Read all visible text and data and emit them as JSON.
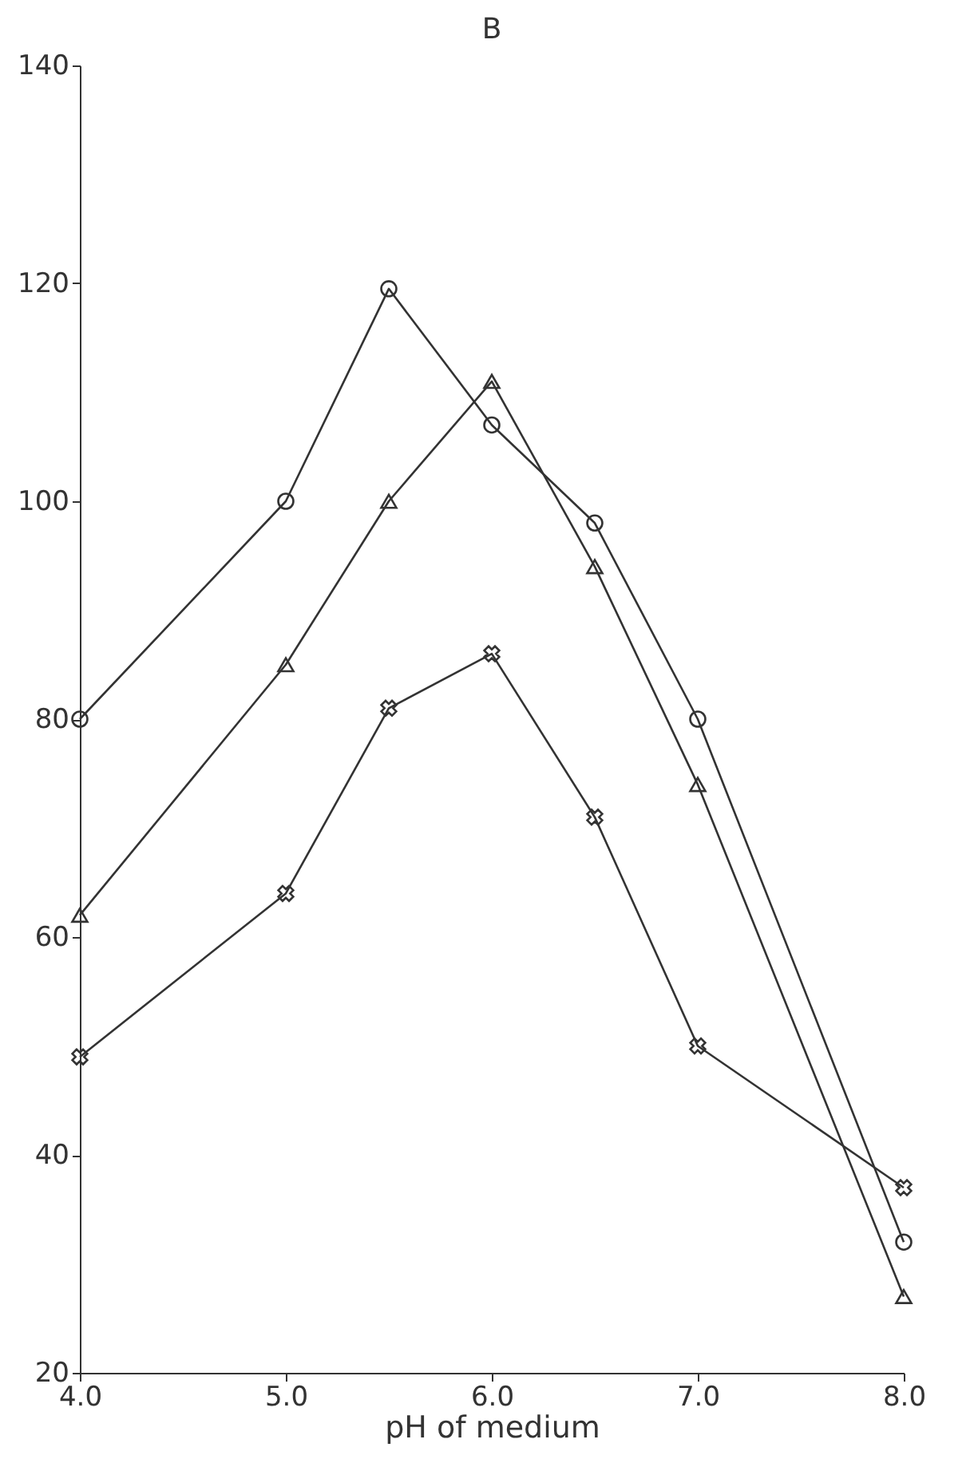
{
  "chart_data": {
    "type": "line",
    "title": "B",
    "xlabel": "pH of medium",
    "x": [
      4.0,
      5.0,
      5.5,
      6.0,
      6.5,
      7.0,
      8.0
    ],
    "series": [
      {
        "color": "#333333",
        "marker": "circle",
        "values": [
          80,
          100,
          119.5,
          107,
          98,
          80,
          32
        ]
      },
      {
        "color": "#333333",
        "marker": "triangle",
        "values": [
          62,
          85,
          100,
          111,
          94,
          74,
          27
        ]
      },
      {
        "color": "#333333",
        "marker": "cross",
        "values": [
          49,
          64,
          81,
          86,
          71,
          50,
          37
        ]
      }
    ],
    "xlim": [
      4,
      8
    ],
    "ylim": [
      20,
      140
    ],
    "xticks": [
      {
        "value": 4,
        "label": "4.0"
      },
      {
        "value": 5,
        "label": "5.0"
      },
      {
        "value": 6,
        "label": "6.0"
      },
      {
        "value": 7,
        "label": "7.0"
      },
      {
        "value": 8,
        "label": "8.0"
      }
    ],
    "yticks": [
      20,
      40,
      60,
      80,
      100,
      120,
      140
    ],
    "grid": false,
    "line_style": "solid"
  }
}
